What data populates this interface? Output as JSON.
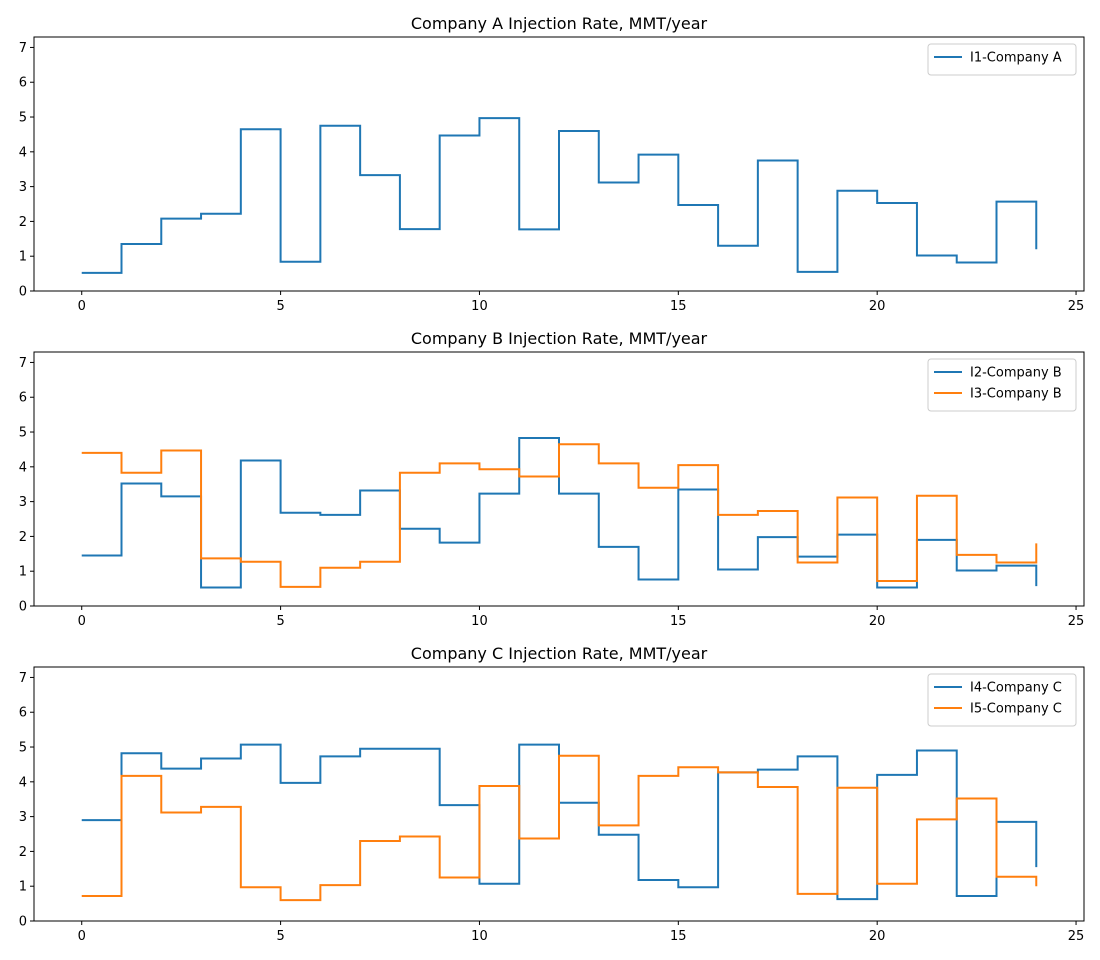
{
  "chart_data": [
    {
      "type": "line",
      "style": "step-post",
      "title": "Company A Injection Rate, MMT/year",
      "xlabel": "",
      "ylabel": "",
      "xlim": [
        -1.2,
        25.2
      ],
      "ylim": [
        0,
        7.3
      ],
      "xticks": [
        0,
        5,
        10,
        15,
        20,
        25
      ],
      "yticks": [
        0,
        1,
        2,
        3,
        4,
        5,
        6,
        7
      ],
      "legend": "top-right",
      "x": [
        0,
        1,
        2,
        3,
        4,
        5,
        6,
        7,
        8,
        9,
        10,
        11,
        12,
        13,
        14,
        15,
        16,
        17,
        18,
        19,
        20,
        21,
        22,
        23,
        24
      ],
      "series": [
        {
          "name": "I1-Company A",
          "color": "#1f77b4",
          "values": [
            0.52,
            1.35,
            2.08,
            2.22,
            4.65,
            0.84,
            4.75,
            3.33,
            1.78,
            4.47,
            4.97,
            1.77,
            4.6,
            3.12,
            3.92,
            2.47,
            1.3,
            3.75,
            0.55,
            2.88,
            2.53,
            1.02,
            0.82,
            2.57,
            1.2
          ]
        }
      ]
    },
    {
      "type": "line",
      "style": "step-post",
      "title": "Company B Injection Rate, MMT/year",
      "xlabel": "",
      "ylabel": "",
      "xlim": [
        -1.2,
        25.2
      ],
      "ylim": [
        0,
        7.3
      ],
      "xticks": [
        0,
        5,
        10,
        15,
        20,
        25
      ],
      "yticks": [
        0,
        1,
        2,
        3,
        4,
        5,
        6,
        7
      ],
      "legend": "top-right",
      "x": [
        0,
        1,
        2,
        3,
        4,
        5,
        6,
        7,
        8,
        9,
        10,
        11,
        12,
        13,
        14,
        15,
        16,
        17,
        18,
        19,
        20,
        21,
        22,
        23,
        24
      ],
      "series": [
        {
          "name": "I2-Company B",
          "color": "#1f77b4",
          "values": [
            1.45,
            3.52,
            3.15,
            0.53,
            4.18,
            2.68,
            2.62,
            3.32,
            2.22,
            1.82,
            3.23,
            4.83,
            3.23,
            1.7,
            0.76,
            3.35,
            1.05,
            1.98,
            1.42,
            2.05,
            0.53,
            1.9,
            1.02,
            1.16,
            0.57
          ]
        },
        {
          "name": "I3-Company B",
          "color": "#ff7f0e",
          "values": [
            4.4,
            3.83,
            4.47,
            1.37,
            1.27,
            0.55,
            1.1,
            1.27,
            3.83,
            4.1,
            3.93,
            3.72,
            4.65,
            4.1,
            3.4,
            4.05,
            2.62,
            2.73,
            1.25,
            3.12,
            0.72,
            3.17,
            1.47,
            1.25,
            1.8
          ]
        }
      ]
    },
    {
      "type": "line",
      "style": "step-post",
      "title": "Company C Injection Rate, MMT/year",
      "xlabel": "",
      "ylabel": "",
      "xlim": [
        -1.2,
        25.2
      ],
      "ylim": [
        0,
        7.3
      ],
      "xticks": [
        0,
        5,
        10,
        15,
        20,
        25
      ],
      "yticks": [
        0,
        1,
        2,
        3,
        4,
        5,
        6,
        7
      ],
      "legend": "top-right",
      "x": [
        0,
        1,
        2,
        3,
        4,
        5,
        6,
        7,
        8,
        9,
        10,
        11,
        12,
        13,
        14,
        15,
        16,
        17,
        18,
        19,
        20,
        21,
        22,
        23,
        24
      ],
      "series": [
        {
          "name": "I4-Company C",
          "color": "#1f77b4",
          "values": [
            2.9,
            4.82,
            4.38,
            4.67,
            5.07,
            3.97,
            4.73,
            4.95,
            4.95,
            3.33,
            1.07,
            5.07,
            3.4,
            2.48,
            1.18,
            0.97,
            4.27,
            4.35,
            4.73,
            0.63,
            4.2,
            4.9,
            0.72,
            2.85,
            1.55
          ]
        },
        {
          "name": "I5-Company C",
          "color": "#ff7f0e",
          "values": [
            0.72,
            4.17,
            3.12,
            3.28,
            0.97,
            0.6,
            1.03,
            2.3,
            2.43,
            1.25,
            3.88,
            2.37,
            4.75,
            2.75,
            4.17,
            4.42,
            4.27,
            3.85,
            0.78,
            3.83,
            1.07,
            2.92,
            3.52,
            1.27,
            1.0
          ]
        }
      ]
    }
  ]
}
